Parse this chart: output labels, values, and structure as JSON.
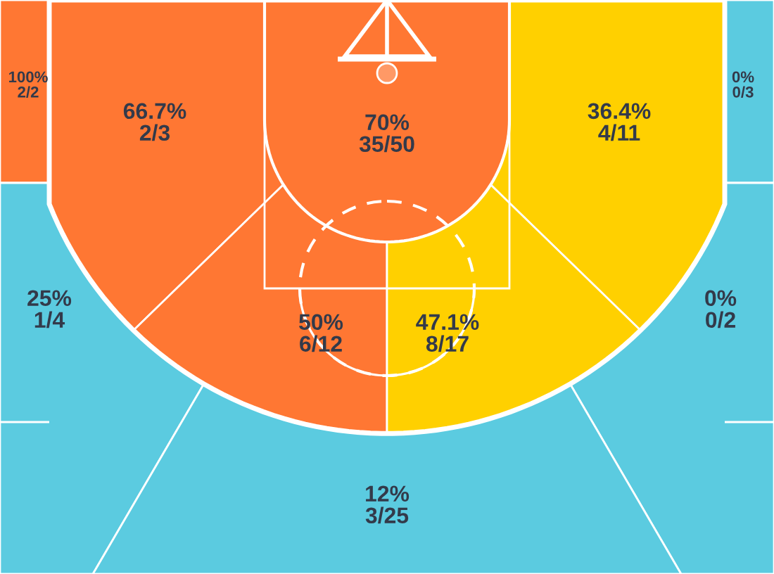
{
  "chart_data": {
    "type": "other",
    "categories": [
      null,
      null,
      null,
      null,
      null,
      null,
      null,
      null,
      null,
      null
    ],
    "values": [
      100,
      66.7,
      70,
      36.4,
      0,
      25,
      50,
      47.1,
      0,
      12
    ],
    "value_labels": [
      "100%\n2/2",
      "66.7%\n2/3",
      "70%\n35/50",
      "36.4%\n4/11",
      "0%\n0/3",
      "25%\n1/4",
      "50%\n6/12",
      "47.1%\n8/17",
      "0%\n0/2",
      "12%\n3/25"
    ],
    "colors": [
      "#ff7733",
      "#ff7733",
      "#ff7733",
      "#ffd000",
      "#5bcbe0",
      "#5bcbe0",
      "#ff7733",
      "#ffd000",
      "#5bcbe0",
      "#5bcbe0"
    ]
  }
}
